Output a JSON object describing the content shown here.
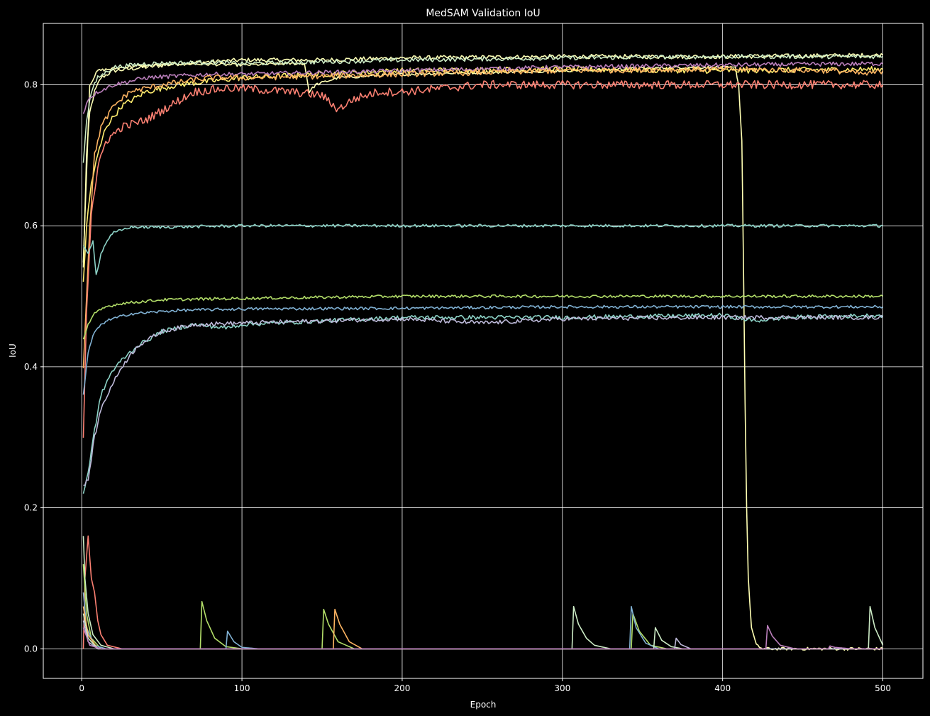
{
  "chart_data": {
    "type": "line",
    "title": "MedSAM Validation IoU",
    "xlabel": "Epoch",
    "ylabel": "IoU",
    "xlim": [
      -24,
      525
    ],
    "ylim": [
      -0.042,
      0.887
    ],
    "xticks": [
      0,
      100,
      200,
      300,
      400,
      500
    ],
    "yticks": [
      0.0,
      0.2,
      0.4,
      0.6,
      0.8
    ],
    "ytick_labels": [
      "0.0",
      "0.2",
      "0.4",
      "0.6",
      "0.8"
    ],
    "grid": true,
    "legend": "none",
    "background": "#000000",
    "series": [
      {
        "color": "#fdffb6",
        "points": [
          [
            1,
            0.54
          ],
          [
            3,
            0.7
          ],
          [
            5,
            0.76
          ],
          [
            8,
            0.79
          ],
          [
            12,
            0.81
          ],
          [
            20,
            0.82
          ],
          [
            40,
            0.825
          ],
          [
            60,
            0.83
          ],
          [
            100,
            0.835
          ],
          [
            150,
            0.835
          ],
          [
            200,
            0.838
          ],
          [
            300,
            0.84
          ],
          [
            400,
            0.84
          ],
          [
            500,
            0.842
          ]
        ],
        "noise": 0.003
      },
      {
        "color": "#ffffb3",
        "points": [
          [
            1,
            0.55
          ],
          [
            5,
            0.8
          ],
          [
            10,
            0.82
          ],
          [
            30,
            0.826
          ],
          [
            60,
            0.83
          ],
          [
            100,
            0.828
          ],
          [
            130,
            0.83
          ],
          [
            139,
            0.83
          ],
          [
            142,
            0.79
          ],
          [
            146,
            0.8
          ],
          [
            160,
            0.81
          ],
          [
            200,
            0.815
          ],
          [
            300,
            0.82
          ],
          [
            380,
            0.825
          ],
          [
            408,
            0.824
          ],
          [
            410,
            0.8
          ],
          [
            412,
            0.72
          ],
          [
            413,
            0.55
          ],
          [
            414,
            0.35
          ],
          [
            415,
            0.2
          ],
          [
            416,
            0.1
          ],
          [
            418,
            0.03
          ],
          [
            421,
            0.005
          ],
          [
            425,
            0.0
          ],
          [
            500,
            0.0
          ]
        ],
        "noise": 0.002
      },
      {
        "color": "#ffed6f",
        "points": [
          [
            1,
            0.52
          ],
          [
            3,
            0.6
          ],
          [
            6,
            0.66
          ],
          [
            10,
            0.7
          ],
          [
            15,
            0.74
          ],
          [
            25,
            0.77
          ],
          [
            40,
            0.79
          ],
          [
            60,
            0.8
          ],
          [
            80,
            0.805
          ],
          [
            100,
            0.81
          ],
          [
            150,
            0.815
          ],
          [
            200,
            0.82
          ],
          [
            300,
            0.822
          ],
          [
            400,
            0.82
          ],
          [
            500,
            0.822
          ]
        ],
        "noise": 0.004
      },
      {
        "color": "#ccebc5",
        "points": [
          [
            1,
            0.69
          ],
          [
            3,
            0.75
          ],
          [
            6,
            0.79
          ],
          [
            10,
            0.81
          ],
          [
            20,
            0.825
          ],
          [
            40,
            0.83
          ],
          [
            80,
            0.832
          ],
          [
            100,
            0.83
          ],
          [
            200,
            0.835
          ],
          [
            300,
            0.838
          ],
          [
            400,
            0.84
          ],
          [
            500,
            0.84
          ]
        ],
        "noise": 0.003
      },
      {
        "color": "#bc80bd",
        "points": [
          [
            1,
            0.76
          ],
          [
            4,
            0.78
          ],
          [
            10,
            0.79
          ],
          [
            20,
            0.8
          ],
          [
            40,
            0.81
          ],
          [
            80,
            0.815
          ],
          [
            100,
            0.815
          ],
          [
            200,
            0.82
          ],
          [
            300,
            0.825
          ],
          [
            400,
            0.828
          ],
          [
            500,
            0.83
          ]
        ],
        "noise": 0.003
      },
      {
        "color": "#fdb462",
        "points": [
          [
            1,
            0.4
          ],
          [
            3,
            0.5
          ],
          [
            5,
            0.6
          ],
          [
            8,
            0.7
          ],
          [
            12,
            0.74
          ],
          [
            20,
            0.77
          ],
          [
            30,
            0.79
          ],
          [
            50,
            0.8
          ],
          [
            80,
            0.81
          ],
          [
            100,
            0.81
          ],
          [
            150,
            0.812
          ],
          [
            200,
            0.815
          ],
          [
            300,
            0.82
          ],
          [
            400,
            0.822
          ],
          [
            470,
            0.82
          ],
          [
            490,
            0.815
          ],
          [
            500,
            0.82
          ]
        ],
        "noise": 0.004
      },
      {
        "color": "#fb8072",
        "points": [
          [
            1,
            0.3
          ],
          [
            3,
            0.48
          ],
          [
            6,
            0.62
          ],
          [
            10,
            0.68
          ],
          [
            15,
            0.72
          ],
          [
            25,
            0.74
          ],
          [
            40,
            0.75
          ],
          [
            55,
            0.77
          ],
          [
            70,
            0.79
          ],
          [
            90,
            0.795
          ],
          [
            100,
            0.795
          ],
          [
            130,
            0.79
          ],
          [
            150,
            0.785
          ],
          [
            160,
            0.765
          ],
          [
            170,
            0.78
          ],
          [
            185,
            0.79
          ],
          [
            200,
            0.79
          ],
          [
            250,
            0.8
          ],
          [
            300,
            0.8
          ],
          [
            400,
            0.8
          ],
          [
            500,
            0.8
          ]
        ],
        "noise": 0.006
      },
      {
        "color": "#8dd3c7",
        "points": [
          [
            1,
            0.57
          ],
          [
            4,
            0.56
          ],
          [
            7,
            0.58
          ],
          [
            9,
            0.53
          ],
          [
            12,
            0.56
          ],
          [
            16,
            0.58
          ],
          [
            20,
            0.59
          ],
          [
            30,
            0.598
          ],
          [
            50,
            0.598
          ],
          [
            100,
            0.6
          ],
          [
            200,
            0.6
          ],
          [
            300,
            0.6
          ],
          [
            400,
            0.6
          ],
          [
            500,
            0.6
          ]
        ],
        "noise": 0.002
      },
      {
        "color": "#b3de69",
        "points": [
          [
            1,
            0.44
          ],
          [
            4,
            0.46
          ],
          [
            8,
            0.475
          ],
          [
            15,
            0.485
          ],
          [
            25,
            0.49
          ],
          [
            50,
            0.495
          ],
          [
            100,
            0.497
          ],
          [
            200,
            0.5
          ],
          [
            300,
            0.5
          ],
          [
            400,
            0.5
          ],
          [
            500,
            0.5
          ]
        ],
        "noise": 0.002
      },
      {
        "color": "#80b1d3",
        "points": [
          [
            1,
            0.36
          ],
          [
            4,
            0.42
          ],
          [
            8,
            0.45
          ],
          [
            15,
            0.465
          ],
          [
            30,
            0.475
          ],
          [
            60,
            0.48
          ],
          [
            100,
            0.482
          ],
          [
            200,
            0.483
          ],
          [
            300,
            0.485
          ],
          [
            400,
            0.485
          ],
          [
            500,
            0.485
          ]
        ],
        "noise": 0.002
      },
      {
        "color": "#8dd3c7",
        "points": [
          [
            1,
            0.22
          ],
          [
            4,
            0.25
          ],
          [
            8,
            0.31
          ],
          [
            12,
            0.36
          ],
          [
            18,
            0.39
          ],
          [
            25,
            0.41
          ],
          [
            35,
            0.43
          ],
          [
            50,
            0.45
          ],
          [
            70,
            0.46
          ],
          [
            90,
            0.455
          ],
          [
            100,
            0.46
          ],
          [
            150,
            0.465
          ],
          [
            200,
            0.47
          ],
          [
            300,
            0.47
          ],
          [
            400,
            0.473
          ],
          [
            420,
            0.465
          ],
          [
            440,
            0.47
          ],
          [
            500,
            0.473
          ]
        ],
        "noise": 0.003
      },
      {
        "color": "#bebada",
        "points": [
          [
            1,
            0.23
          ],
          [
            4,
            0.24
          ],
          [
            8,
            0.3
          ],
          [
            12,
            0.34
          ],
          [
            18,
            0.37
          ],
          [
            25,
            0.4
          ],
          [
            35,
            0.43
          ],
          [
            50,
            0.45
          ],
          [
            70,
            0.46
          ],
          [
            100,
            0.462
          ],
          [
            150,
            0.465
          ],
          [
            200,
            0.468
          ],
          [
            250,
            0.462
          ],
          [
            300,
            0.468
          ],
          [
            400,
            0.47
          ],
          [
            500,
            0.47
          ]
        ],
        "noise": 0.003
      },
      {
        "color": "#fb8072",
        "points": [
          [
            1,
            0.0
          ],
          [
            2,
            0.1
          ],
          [
            4,
            0.16
          ],
          [
            6,
            0.1
          ],
          [
            8,
            0.08
          ],
          [
            10,
            0.04
          ],
          [
            12,
            0.02
          ],
          [
            16,
            0.005
          ],
          [
            25,
            0.0
          ],
          [
            500,
            0.0
          ]
        ],
        "noise": 0.0
      },
      {
        "color": "#ccebc5",
        "points": [
          [
            1,
            0.16
          ],
          [
            2,
            0.1
          ],
          [
            4,
            0.05
          ],
          [
            7,
            0.02
          ],
          [
            12,
            0.005
          ],
          [
            20,
            0.0
          ],
          [
            306,
            0.0
          ],
          [
            307,
            0.06
          ],
          [
            310,
            0.035
          ],
          [
            315,
            0.015
          ],
          [
            320,
            0.005
          ],
          [
            330,
            0.0
          ],
          [
            491,
            0.0
          ],
          [
            492,
            0.06
          ],
          [
            495,
            0.03
          ],
          [
            500,
            0.005
          ]
        ],
        "noise": 0.0
      },
      {
        "color": "#b3de69",
        "points": [
          [
            1,
            0.12
          ],
          [
            3,
            0.05
          ],
          [
            6,
            0.015
          ],
          [
            12,
            0.0
          ],
          [
            74,
            0.0
          ],
          [
            75,
            0.067
          ],
          [
            78,
            0.04
          ],
          [
            83,
            0.015
          ],
          [
            90,
            0.003
          ],
          [
            100,
            0.0
          ],
          [
            150,
            0.0
          ],
          [
            151,
            0.056
          ],
          [
            154,
            0.035
          ],
          [
            160,
            0.01
          ],
          [
            170,
            0.0
          ],
          [
            343,
            0.0
          ],
          [
            344,
            0.05
          ],
          [
            348,
            0.025
          ],
          [
            355,
            0.005
          ],
          [
            365,
            0.0
          ],
          [
            500,
            0.0
          ]
        ],
        "noise": 0.0
      },
      {
        "color": "#80b1d3",
        "points": [
          [
            1,
            0.08
          ],
          [
            3,
            0.03
          ],
          [
            8,
            0.005
          ],
          [
            15,
            0.0
          ],
          [
            90,
            0.0
          ],
          [
            91,
            0.025
          ],
          [
            95,
            0.01
          ],
          [
            100,
            0.002
          ],
          [
            110,
            0.0
          ],
          [
            342,
            0.0
          ],
          [
            343,
            0.06
          ],
          [
            346,
            0.03
          ],
          [
            352,
            0.008
          ],
          [
            360,
            0.0
          ],
          [
            500,
            0.0
          ]
        ],
        "noise": 0.0
      },
      {
        "color": "#fdb462",
        "points": [
          [
            1,
            0.06
          ],
          [
            4,
            0.02
          ],
          [
            10,
            0.0
          ],
          [
            157,
            0.0
          ],
          [
            158,
            0.056
          ],
          [
            161,
            0.035
          ],
          [
            167,
            0.01
          ],
          [
            175,
            0.0
          ],
          [
            500,
            0.0
          ]
        ],
        "noise": 0.0
      },
      {
        "color": "#ccebc5",
        "points": [
          [
            1,
            0.05
          ],
          [
            4,
            0.015
          ],
          [
            10,
            0.0
          ],
          [
            357,
            0.0
          ],
          [
            358,
            0.03
          ],
          [
            362,
            0.012
          ],
          [
            368,
            0.003
          ],
          [
            375,
            0.0
          ],
          [
            500,
            0.0
          ]
        ],
        "noise": 0.0
      },
      {
        "color": "#bebada",
        "points": [
          [
            1,
            0.04
          ],
          [
            4,
            0.01
          ],
          [
            10,
            0.0
          ],
          [
            370,
            0.0
          ],
          [
            371,
            0.015
          ],
          [
            374,
            0.006
          ],
          [
            380,
            0.0
          ],
          [
            500,
            0.0
          ]
        ],
        "noise": 0.0
      },
      {
        "color": "#bc80bd",
        "points": [
          [
            1,
            0.03
          ],
          [
            5,
            0.005
          ],
          [
            12,
            0.0
          ],
          [
            427,
            0.0
          ],
          [
            428,
            0.033
          ],
          [
            431,
            0.018
          ],
          [
            436,
            0.005
          ],
          [
            445,
            0.0
          ],
          [
            466,
            0.0
          ],
          [
            467,
            0.004
          ],
          [
            470,
            0.002
          ],
          [
            480,
            0.0
          ],
          [
            500,
            0.0
          ]
        ],
        "noise": 0.0
      }
    ]
  }
}
